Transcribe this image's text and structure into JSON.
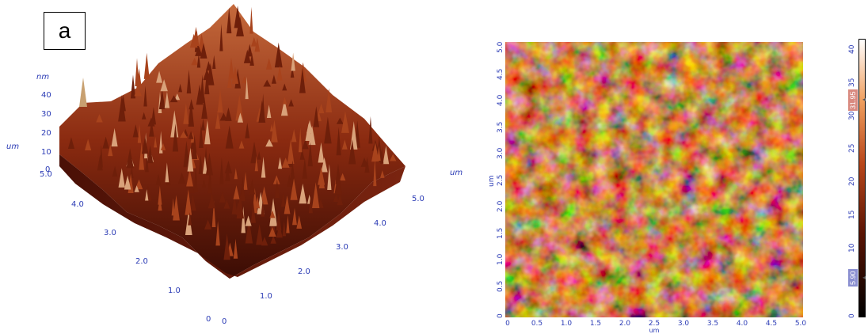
{
  "panel_label": "a",
  "surface3d": {
    "z_unit": "nm",
    "z_ticks": [
      "40",
      "30",
      "20",
      "10",
      "0"
    ],
    "axis_unit_left": "um",
    "axis_unit_right": "um",
    "left_axis_ticks": [
      "5.0",
      "4.0",
      "3.0",
      "2.0",
      "1.0",
      "0"
    ],
    "right_axis_ticks": [
      "5.0",
      "4.0",
      "3.0",
      "2.0",
      "1.0",
      "0"
    ]
  },
  "height_map": {
    "y_unit": "um",
    "x_unit": "um",
    "y_ticks": [
      "5.0",
      "4.5",
      "4.0",
      "3.5",
      "3.0",
      "2.5",
      "2.0",
      "1.5",
      "1.0",
      "0.5",
      "0"
    ],
    "x_ticks": [
      "0",
      "0.5",
      "1.0",
      "1.5",
      "2.0",
      "2.5",
      "3.0",
      "3.5",
      "4.0",
      "4.5",
      "5.0"
    ]
  },
  "colorbar": {
    "ticks": [
      "40",
      "35",
      "30",
      "25",
      "20",
      "15",
      "10",
      "5",
      "0"
    ],
    "upper_marker": "31.95",
    "lower_marker": "5.90",
    "upper_marker_color": "#d98a80",
    "lower_marker_color": "#8a8fd0"
  }
}
